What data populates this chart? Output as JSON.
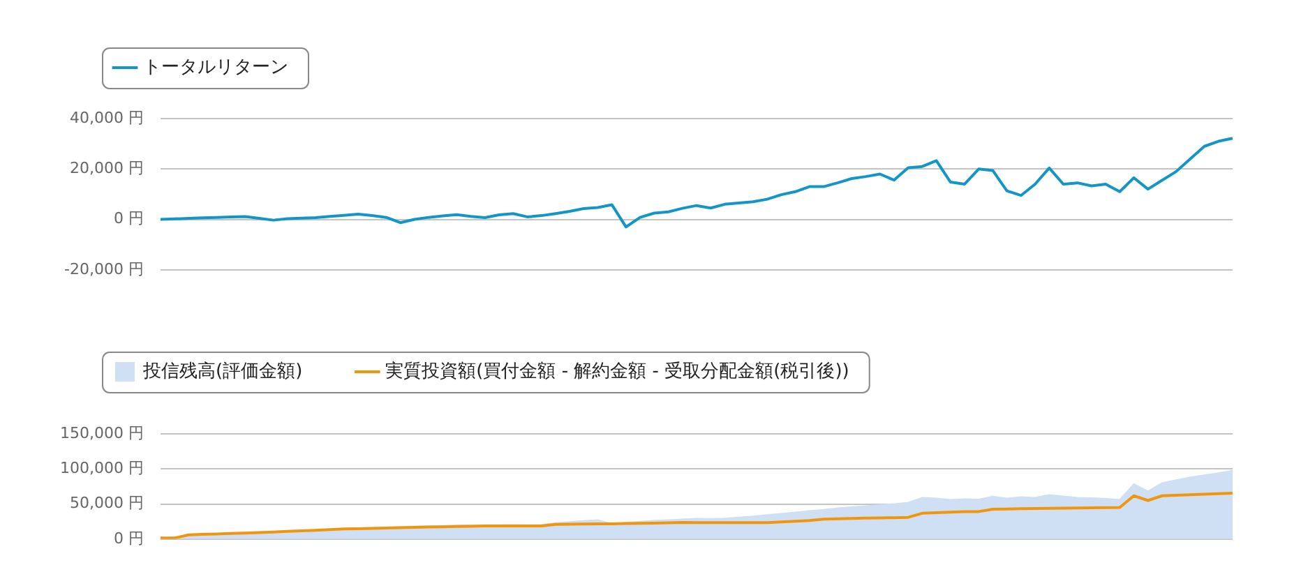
{
  "chart_data": [
    {
      "type": "line",
      "categories": [
        null,
        null,
        null,
        null,
        null,
        null,
        null,
        null,
        null,
        null,
        null,
        null,
        null,
        null,
        null,
        null,
        null,
        null,
        null,
        null,
        null,
        null,
        null,
        null,
        null,
        null,
        null,
        null,
        null,
        null,
        null,
        null,
        null,
        null,
        null,
        null,
        null,
        null,
        null,
        null,
        null,
        null,
        null,
        null,
        null,
        null,
        null,
        null,
        null,
        null,
        null,
        null,
        null,
        null,
        null,
        null,
        null,
        null,
        null,
        null,
        null,
        null,
        null,
        null,
        null,
        null,
        null,
        null,
        null,
        null,
        null,
        null,
        null,
        null,
        null,
        null,
        null
      ],
      "series": [
        {
          "name": "トータルリターン",
          "color": "#1396c6",
          "values": [
            0,
            200,
            400,
            600,
            800,
            1000,
            1100,
            400,
            -300,
            300,
            500,
            700,
            1200,
            1600,
            2100,
            1500,
            800,
            -1300,
            0,
            800,
            1400,
            1900,
            1200,
            700,
            1800,
            2300,
            1000,
            1500,
            2300,
            3200,
            4300,
            4700,
            5800,
            -3000,
            800,
            2500,
            3000,
            4400,
            5500,
            4500,
            6000,
            6500,
            7000,
            8000,
            9800,
            11000,
            13000,
            13000,
            14500,
            16200,
            17000,
            18000,
            15600,
            20500,
            21000,
            23300,
            14800,
            14000,
            20000,
            19400,
            11300,
            9500,
            14000,
            20400,
            14000,
            14500,
            13300,
            14000,
            11000,
            16500,
            12000,
            15500,
            19000,
            24000,
            29000,
            31000,
            32200
          ]
        }
      ],
      "ylim": [
        -20000,
        40000
      ],
      "yticks": [
        {
          "value": -20000,
          "label": "-20,000 円"
        },
        {
          "value": 0,
          "label": "0 円"
        },
        {
          "value": 20000,
          "label": "20,000 円"
        },
        {
          "value": 40000,
          "label": "40,000 円"
        }
      ],
      "grid": "y",
      "legend": "top left",
      "tick_labels": "y"
    },
    {
      "type": "area",
      "categories": [
        null,
        null,
        null,
        null,
        null,
        null,
        null,
        null,
        null,
        null,
        null,
        null,
        null,
        null,
        null,
        null,
        null,
        null,
        null,
        null,
        null,
        null,
        null,
        null,
        null,
        null,
        null,
        null,
        null,
        null,
        null,
        null,
        null,
        null,
        null,
        null,
        null,
        null,
        null,
        null,
        null,
        null,
        null,
        null,
        null,
        null,
        null,
        null,
        null,
        null,
        null,
        null,
        null,
        null,
        null,
        null,
        null,
        null,
        null,
        null,
        null,
        null,
        null,
        null,
        null,
        null,
        null,
        null,
        null,
        null,
        null,
        null,
        null,
        null,
        null,
        null,
        null
      ],
      "series": [
        {
          "name": "投信残高(評価金額)",
          "color": "#cfdff4",
          "values": [
            1500,
            1500,
            6200,
            7000,
            7800,
            8600,
            9300,
            10000,
            10700,
            11500,
            12300,
            13200,
            14000,
            15000,
            15600,
            16200,
            16800,
            17400,
            18000,
            18500,
            19000,
            19500,
            19800,
            20000,
            20000,
            20200,
            20000,
            20200,
            23000,
            24500,
            25800,
            27200,
            21800,
            23500,
            25000,
            26400,
            27200,
            28200,
            29200,
            29000,
            29500,
            31000,
            32500,
            34400,
            36200,
            38000,
            40000,
            41800,
            44000,
            45500,
            47000,
            48500,
            50000,
            52000,
            59000,
            58000,
            56000,
            57000,
            56500,
            60800,
            58000,
            60000,
            59000,
            63000,
            61000,
            59000,
            58400,
            57500,
            56000,
            78500,
            68000,
            80000,
            84000,
            88000,
            91000,
            94000,
            97600
          ]
        },
        {
          "name": "実質投資額(買付金額 - 解約金額 - 受取分配金額(税引後))",
          "type": "line",
          "color": "#f0960e",
          "values": [
            1500,
            1500,
            6000,
            6700,
            7300,
            8000,
            8600,
            9300,
            10000,
            10900,
            11800,
            12600,
            13500,
            14400,
            14800,
            15300,
            15800,
            16300,
            16800,
            17100,
            17500,
            17900,
            18300,
            18700,
            18700,
            18700,
            18700,
            18700,
            21000,
            21200,
            21400,
            21600,
            21800,
            22100,
            22500,
            22800,
            23200,
            23600,
            23500,
            23500,
            23500,
            23500,
            23500,
            23500,
            24500,
            25500,
            26500,
            28500,
            29000,
            29400,
            29800,
            30200,
            30500,
            31000,
            36800,
            37600,
            38400,
            39000,
            39200,
            42600,
            42900,
            43200,
            43500,
            43800,
            44000,
            44200,
            44500,
            44700,
            45000,
            61700,
            55000,
            61700,
            62500,
            63300,
            64000,
            64800,
            65500
          ]
        }
      ],
      "ylim": [
        0,
        150000
      ],
      "yticks": [
        {
          "value": 0,
          "label": "0 円"
        },
        {
          "value": 50000,
          "label": "50,000 円"
        },
        {
          "value": 100000,
          "label": "100,000 円"
        },
        {
          "value": 150000,
          "label": "150,000 円"
        }
      ],
      "grid": "y",
      "legend": "top left",
      "tick_labels": "y"
    }
  ]
}
